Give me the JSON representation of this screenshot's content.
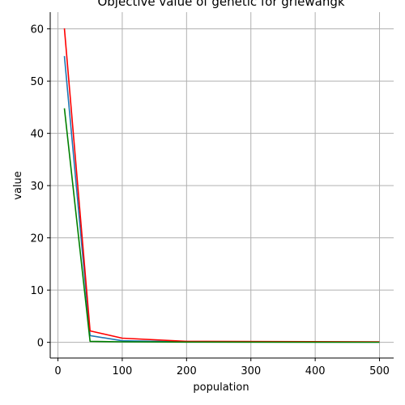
{
  "chart_data": {
    "type": "line",
    "title": "Objective value of genetic for griewangk",
    "xlabel": "population",
    "ylabel": "value",
    "xlim": [
      -12,
      522
    ],
    "ylim": [
      -3,
      63.2
    ],
    "xticks": [
      0,
      100,
      200,
      300,
      400,
      500
    ],
    "yticks": [
      0,
      10,
      20,
      30,
      40,
      50,
      60
    ],
    "grid": true,
    "x": [
      10,
      50,
      100,
      200,
      500
    ],
    "series": [
      {
        "color": "#1f77b4",
        "values": [
          54.8,
          1.3,
          0.3,
          0.1,
          0.05
        ]
      },
      {
        "color": "#ff0000",
        "values": [
          60.1,
          2.2,
          0.8,
          0.2,
          0.1
        ]
      },
      {
        "color": "#008000",
        "values": [
          44.8,
          0.2,
          0.1,
          0.05,
          0.02
        ]
      }
    ]
  }
}
